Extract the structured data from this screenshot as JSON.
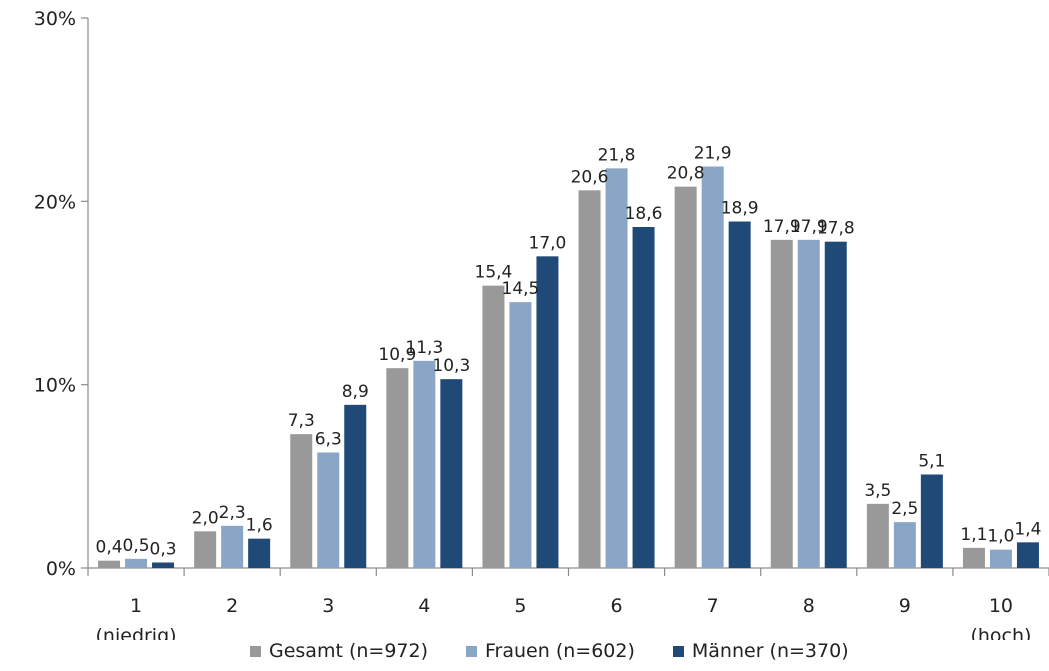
{
  "chart_data": {
    "type": "bar",
    "categories": [
      [
        "1",
        "(niedrig)"
      ],
      [
        "2"
      ],
      [
        "3"
      ],
      [
        "4"
      ],
      [
        "5"
      ],
      [
        "6"
      ],
      [
        "7"
      ],
      [
        "8"
      ],
      [
        "9"
      ],
      [
        "10",
        "(hoch)"
      ]
    ],
    "series": [
      {
        "name": "Gesamt (n=972)",
        "color": "#999999",
        "values": [
          0.4,
          2.0,
          7.3,
          10.9,
          15.4,
          20.6,
          20.8,
          17.9,
          3.5,
          1.1
        ],
        "labels": [
          "0,4",
          "2,0",
          "7,3",
          "10,9",
          "15,4",
          "20,6",
          "20,8",
          "17,9",
          "3,5",
          "1,1"
        ]
      },
      {
        "name": "Frauen (n=602)",
        "color": "#8aa6c7",
        "values": [
          0.5,
          2.3,
          6.3,
          11.3,
          14.5,
          21.8,
          21.9,
          17.9,
          2.5,
          1.0
        ],
        "labels": [
          "0,5",
          "2,3",
          "6,3",
          "11,3",
          "14,5",
          "21,8",
          "21,9",
          "17,9",
          "2,5",
          "1,0"
        ]
      },
      {
        "name": "Männer (n=370)",
        "color": "#1f4a78",
        "values": [
          0.3,
          1.6,
          8.9,
          10.3,
          17.0,
          18.6,
          18.9,
          17.8,
          5.1,
          1.4
        ],
        "labels": [
          "0,3",
          "1,6",
          "8,9",
          "10,3",
          "17,0",
          "18,6",
          "18,9",
          "17,8",
          "5,1",
          "1,4"
        ]
      }
    ],
    "y_ticks": [
      0,
      10,
      20,
      30
    ],
    "y_tick_labels": [
      "0%",
      "10%",
      "20%",
      "30%"
    ],
    "ylim": [
      0,
      30
    ],
    "grid": false,
    "legend_position": "bottom"
  }
}
